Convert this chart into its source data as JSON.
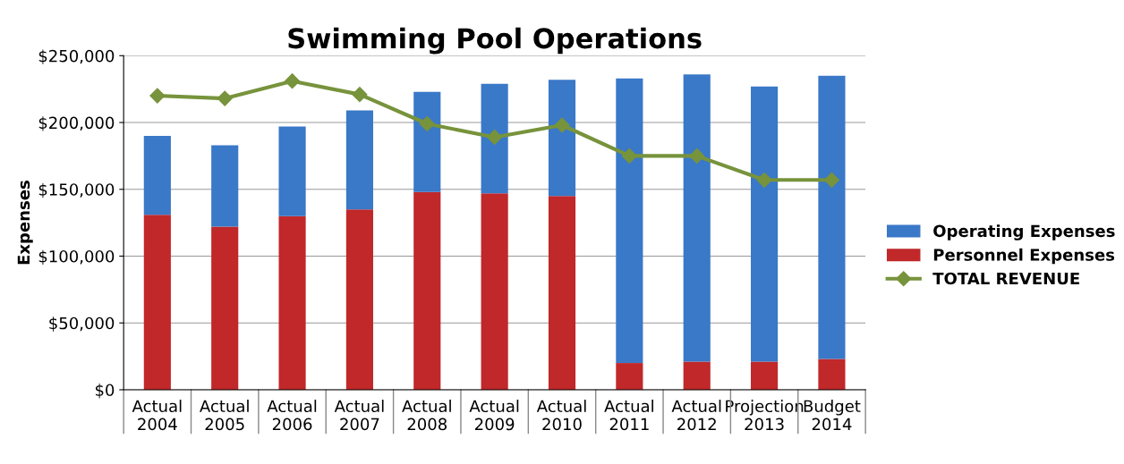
{
  "chart_data": {
    "type": "bar",
    "title": "Swimming Pool Operations",
    "ylabel": "Expenses",
    "categories": [
      "Actual\n2004",
      "Actual\n2005",
      "Actual\n2006",
      "Actual\n2007",
      "Actual\n2008",
      "Actual\n2009",
      "Actual\n2010",
      "Actual\n2011",
      "Actual\n2012",
      "Projection\n2013",
      "Budget\n2014"
    ],
    "stacked": true,
    "series": [
      {
        "name": "Personnel Expenses",
        "color": "#c0282a",
        "values": [
          131000,
          122000,
          130000,
          135000,
          148000,
          147000,
          145000,
          20000,
          21000,
          21000,
          23000
        ]
      },
      {
        "name": "Operating Expenses",
        "color": "#3a78c8",
        "values": [
          59000,
          61000,
          67000,
          74000,
          75000,
          82000,
          87000,
          213000,
          215000,
          206000,
          212000
        ]
      },
      {
        "name": "TOTAL REVENUE",
        "type": "line",
        "color": "#77933c",
        "marker": "diamond",
        "values": [
          220000,
          218000,
          231000,
          221000,
          199000,
          189000,
          198000,
          175000,
          175000,
          157000,
          157000
        ]
      }
    ],
    "ylim": [
      0,
      250000
    ],
    "yticks": [
      {
        "value": 0,
        "label": "$0"
      },
      {
        "value": 50000,
        "label": "$50,000"
      },
      {
        "value": 100000,
        "label": "$100,000"
      },
      {
        "value": 150000,
        "label": "$150,000"
      },
      {
        "value": 200000,
        "label": "$200,000"
      },
      {
        "value": 250000,
        "label": "$250,000"
      }
    ],
    "grid": "y",
    "legend": "right"
  }
}
